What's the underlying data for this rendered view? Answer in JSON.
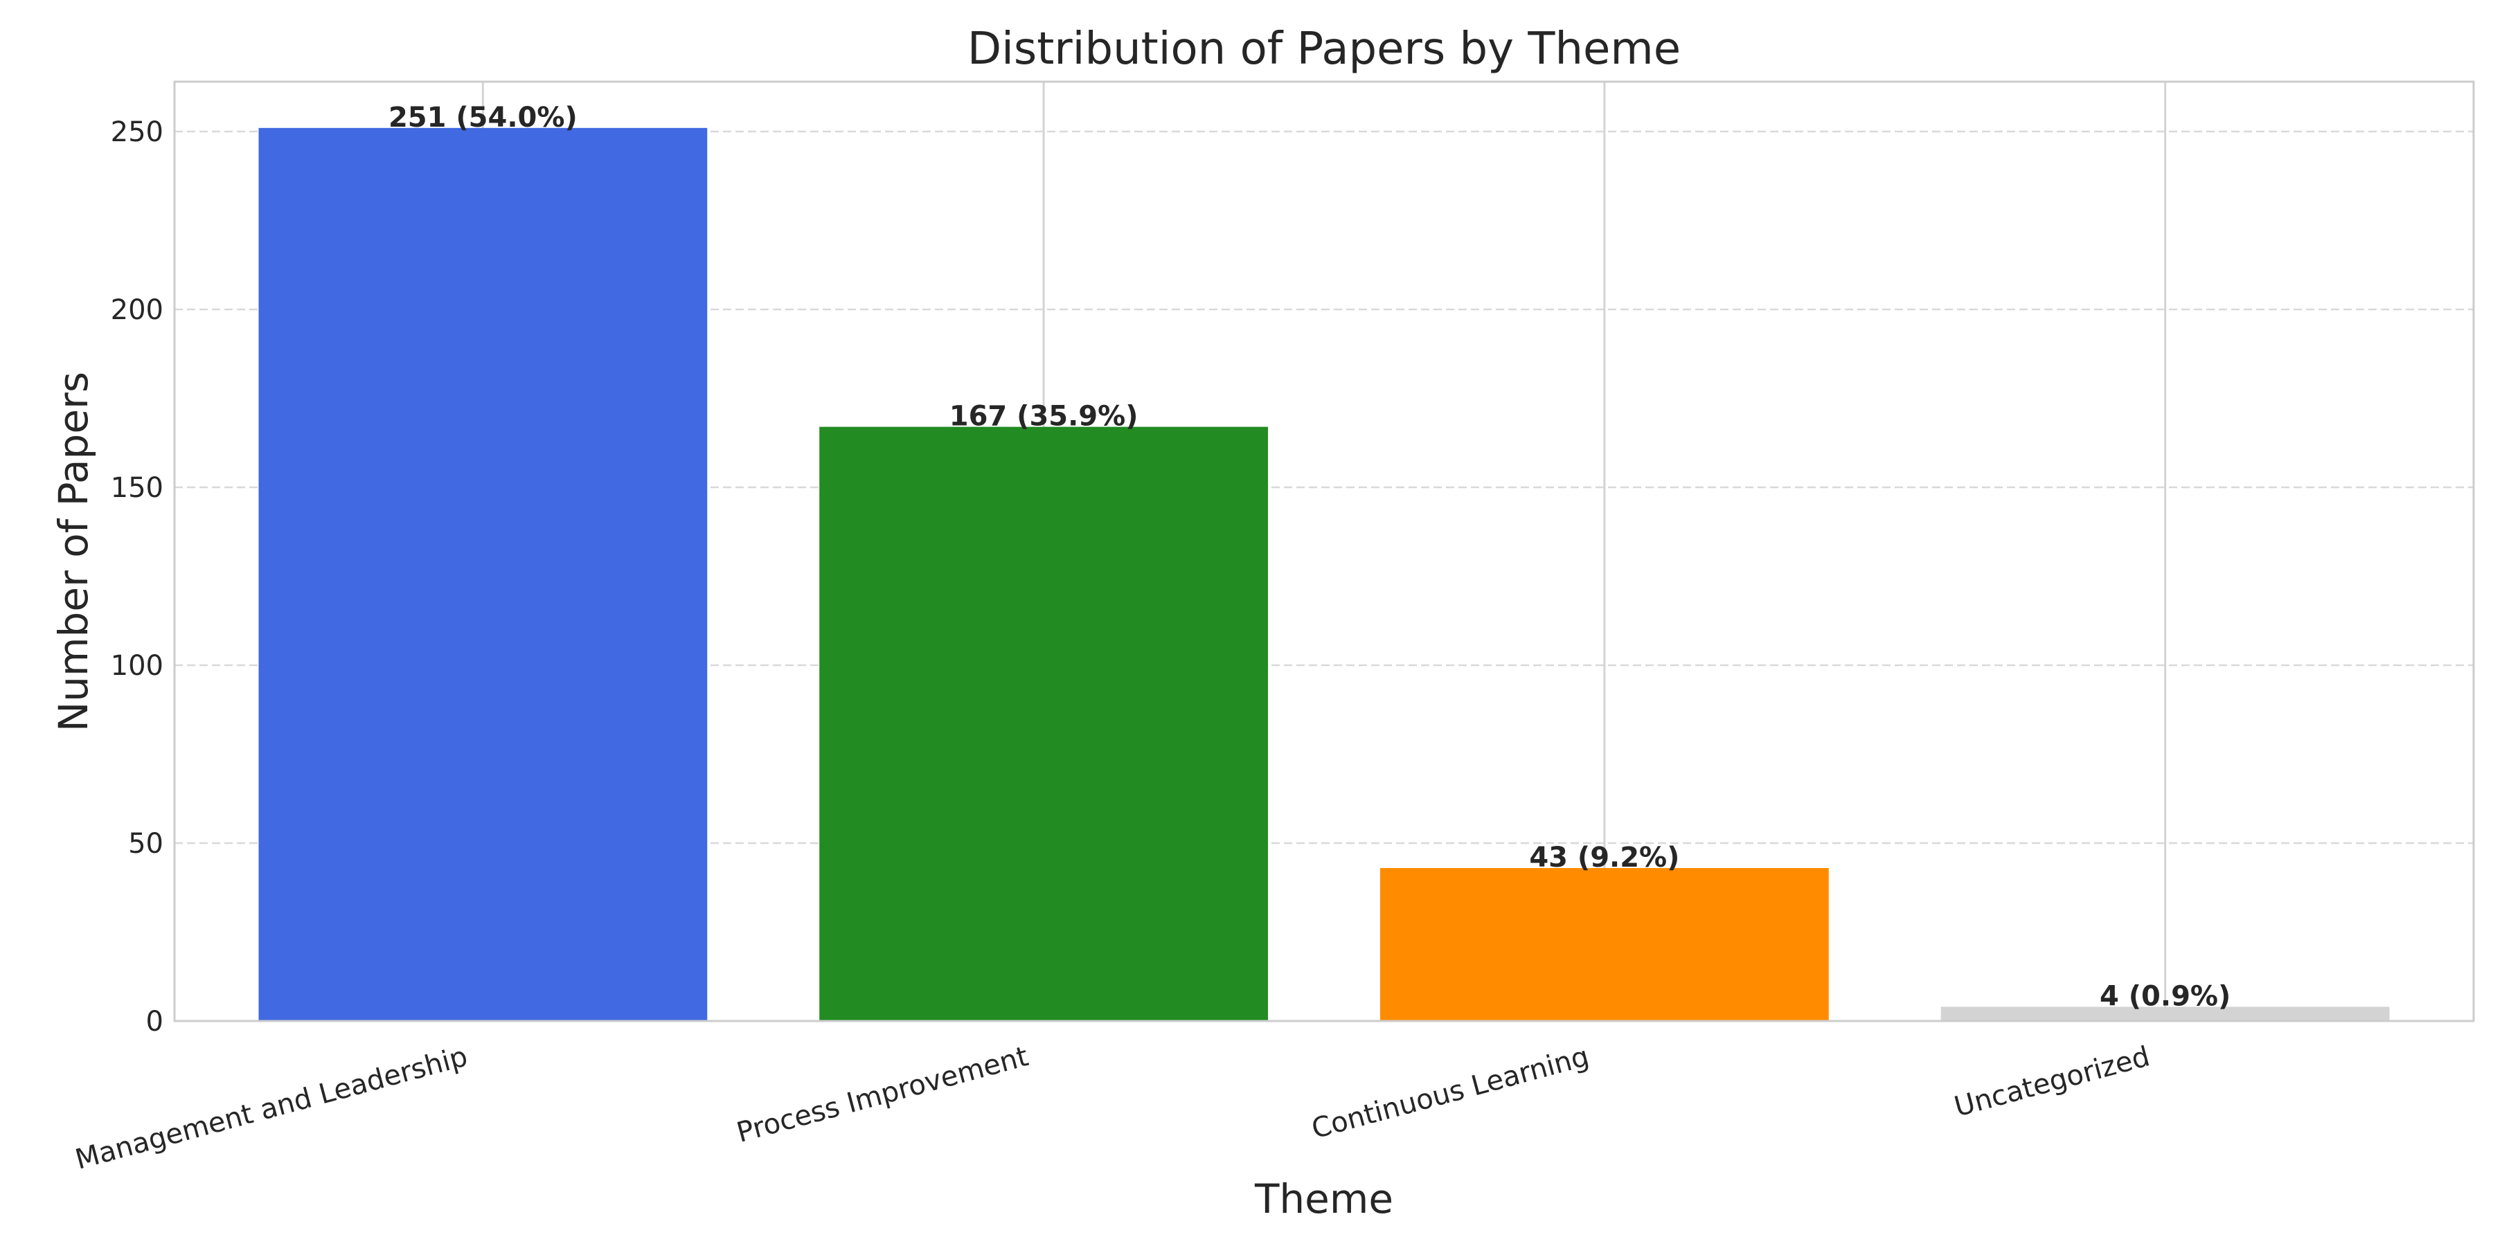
{
  "chart_data": {
    "type": "bar",
    "title": "Distribution of Papers by Theme",
    "xlabel": "Theme",
    "ylabel": "Number of Papers",
    "categories": [
      "Management and Leadership",
      "Process Improvement",
      "Continuous Learning",
      "Uncategorized"
    ],
    "values": [
      251,
      167,
      43,
      4
    ],
    "data_labels": [
      "251 (54.0%)",
      "167 (35.9%)",
      "43 (9.2%)",
      "4 (0.9%)"
    ],
    "colors": [
      "#4169e1",
      "#228b22",
      "#ff8c00",
      "#d3d3d3"
    ],
    "ylim": [
      0,
      264
    ],
    "yticks": [
      0,
      50,
      100,
      150,
      200,
      250
    ],
    "grid": true,
    "legend": "none"
  }
}
